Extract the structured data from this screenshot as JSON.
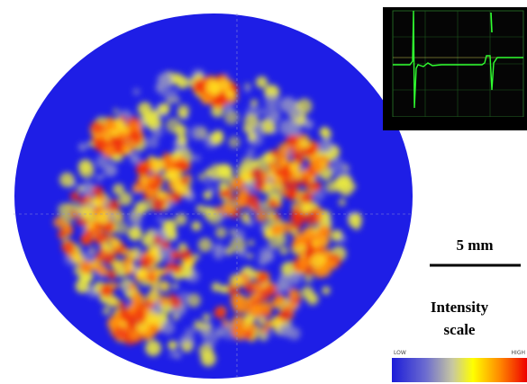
{
  "scale_bar": {
    "label": "5 mm"
  },
  "intensity_scale": {
    "title_lines": [
      "Intensity",
      "scale"
    ],
    "low": "LOW",
    "high": "HIGH"
  }
}
